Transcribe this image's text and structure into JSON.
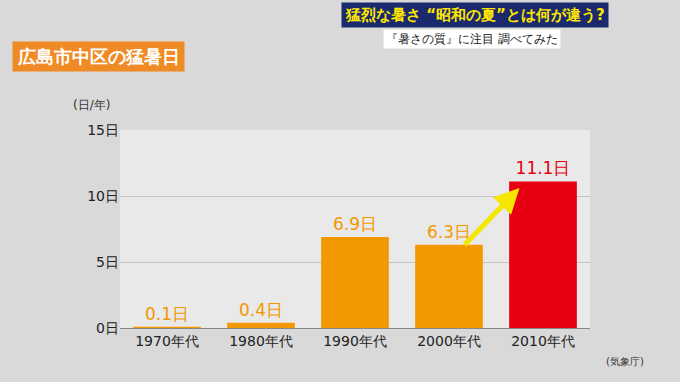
{
  "chart_data": {
    "type": "bar",
    "title": "広島市中区の猛暑日",
    "annotations": [
      "猛烈な暑さ “昭和の夏”とは何が違う?",
      "『暑さの質』に注目 調べてみた",
      "(気象庁)"
    ],
    "ylabel": "(日/年)",
    "categories": [
      "1970年代",
      "1980年代",
      "1990年代",
      "2000年代",
      "2010年代"
    ],
    "values": [
      0.1,
      0.4,
      6.9,
      6.3,
      11.1
    ],
    "value_labels": [
      "0.1日",
      "0.4日",
      "6.9日",
      "6.3日",
      "11.1日"
    ],
    "colors": [
      "#f39800",
      "#f39800",
      "#f39800",
      "#f39800",
      "#e60012"
    ],
    "data_labels": true,
    "ylim": [
      0,
      15
    ],
    "yticks": [
      {
        "value": 0,
        "label": "0日"
      },
      {
        "value": 5,
        "label": "5日"
      },
      {
        "value": 10,
        "label": "10日"
      },
      {
        "value": 15,
        "label": "15日"
      }
    ],
    "grid": true
  }
}
